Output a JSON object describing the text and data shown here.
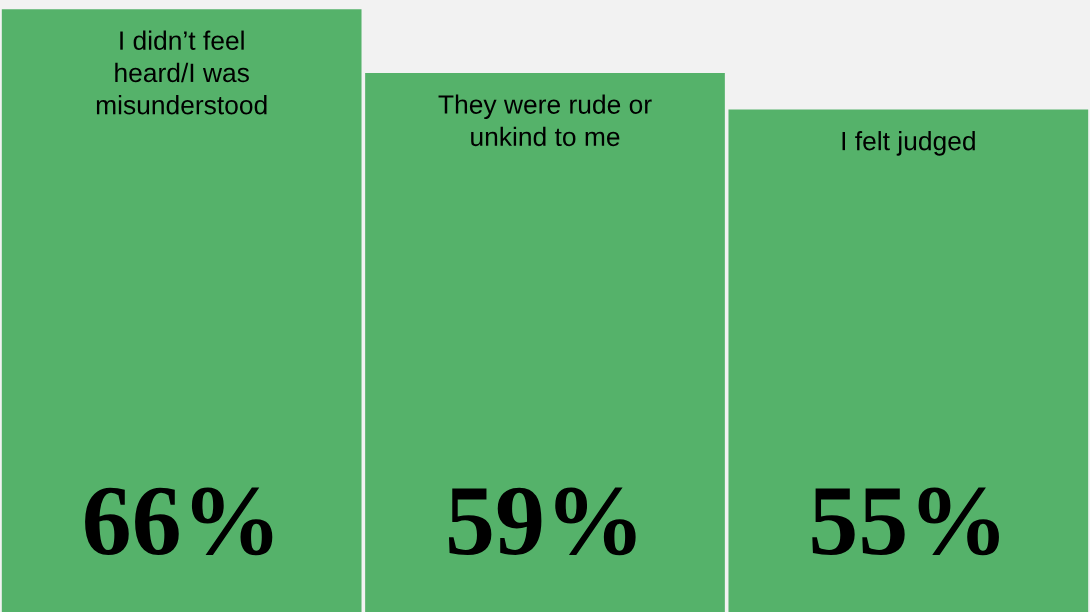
{
  "chart_data": {
    "type": "bar",
    "categories": [
      "I didn’t feel\nheard/I was\nmisunderstood",
      "They were rude or\nunkind to me",
      "I felt judged"
    ],
    "values": [
      66,
      59,
      55
    ],
    "color": "#55b26a",
    "value_labels": [
      "66%",
      "59%",
      "55%"
    ],
    "ylim": [
      0,
      67
    ]
  }
}
